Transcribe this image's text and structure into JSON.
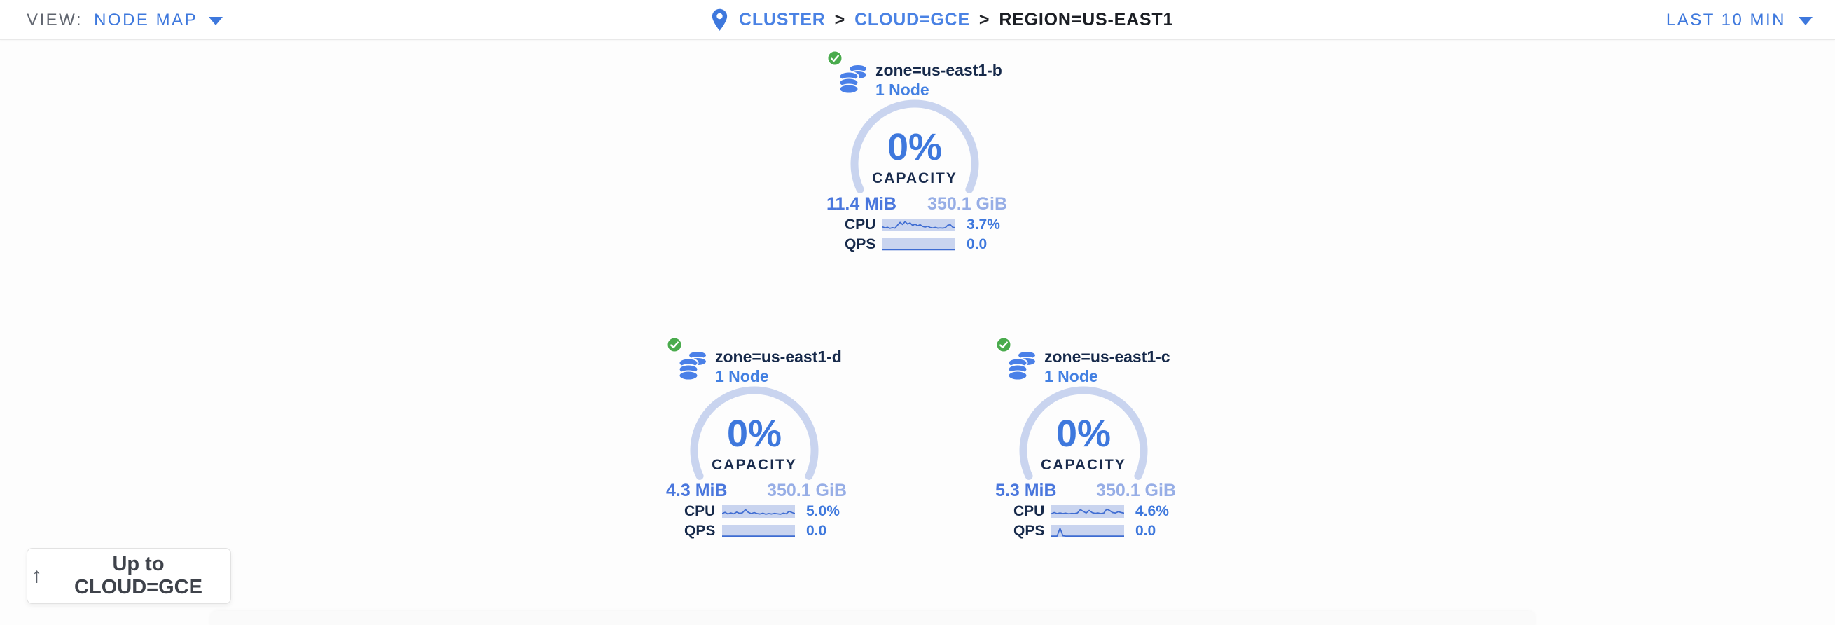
{
  "header": {
    "view_label": "VIEW:",
    "view_value": "NODE MAP",
    "breadcrumb": {
      "cluster": "CLUSTER",
      "separator": ">",
      "cloud": "CLOUD=GCE",
      "region": "REGION=US-EAST1"
    },
    "time_range": "LAST 10 MIN"
  },
  "zones": [
    {
      "name": "zone=us-east1-b",
      "nodes": "1 Node",
      "capacity_pct": "0%",
      "capacity_label": "CAPACITY",
      "used": "11.4 MiB",
      "available": "350.1 GiB",
      "cpu_label": "CPU",
      "cpu_value": "3.7%",
      "qps_label": "QPS",
      "qps_value": "0.0",
      "cpu_spark": [
        32,
        22,
        28,
        18,
        25,
        20,
        48,
        75,
        55,
        82,
        58,
        70,
        45,
        58,
        42,
        52,
        36,
        30,
        38,
        26,
        22,
        27,
        20,
        22,
        20,
        24,
        48,
        52,
        28,
        24
      ],
      "qps_spark": [
        3,
        3,
        3,
        3,
        3,
        3,
        3,
        3,
        3,
        3,
        3,
        3,
        3,
        3,
        3,
        3,
        3,
        3,
        3,
        3,
        3,
        3,
        3,
        3,
        3,
        3,
        3,
        3,
        3,
        3
      ]
    },
    {
      "name": "zone=us-east1-d",
      "nodes": "1 Node",
      "capacity_pct": "0%",
      "capacity_label": "CAPACITY",
      "used": "4.3 MiB",
      "available": "350.1 GiB",
      "cpu_label": "CPU",
      "cpu_value": "5.0%",
      "qps_label": "QPS",
      "qps_value": "0.0",
      "cpu_spark": [
        30,
        42,
        26,
        36,
        28,
        44,
        32,
        38,
        68,
        42,
        30,
        40,
        30,
        26,
        34,
        24,
        30,
        26,
        32,
        28,
        24,
        34,
        28,
        52,
        40,
        30
      ],
      "qps_spark": [
        3,
        3,
        3,
        3,
        3,
        3,
        3,
        3,
        3,
        3,
        3,
        3,
        3,
        3,
        3,
        3,
        3,
        3,
        3,
        3,
        3,
        3,
        3,
        3,
        3,
        3
      ]
    },
    {
      "name": "zone=us-east1-c",
      "nodes": "1 Node",
      "capacity_pct": "0%",
      "capacity_label": "CAPACITY",
      "used": "5.3 MiB",
      "available": "350.1 GiB",
      "cpu_label": "CPU",
      "cpu_value": "4.6%",
      "qps_label": "QPS",
      "qps_value": "0.0",
      "cpu_spark": [
        28,
        40,
        30,
        36,
        30,
        34,
        28,
        32,
        30,
        36,
        68,
        50,
        36,
        60,
        40,
        32,
        36,
        30,
        34,
        72,
        60,
        40,
        36,
        48,
        40,
        34
      ],
      "qps_spark": [
        3,
        3,
        3,
        78,
        6,
        3,
        3,
        3,
        3,
        3,
        3,
        3,
        3,
        3,
        3,
        3,
        3,
        3,
        3,
        3,
        3,
        3,
        3,
        3,
        3,
        3
      ]
    }
  ],
  "up_button": {
    "arrow": "↑",
    "label": "Up to CLOUD=GCE"
  },
  "colors": {
    "accent_blue": "#3e78dd",
    "link_blue": "#4a82e4",
    "navy": "#16294a",
    "arc_blue": "#c9d4ef",
    "spark_bg": "#c9d4ef",
    "spark_line": "#3e6cd2",
    "used_blue": "#4a77dd",
    "available_blue": "#97aee6",
    "ok_green": "#4aab4d"
  }
}
